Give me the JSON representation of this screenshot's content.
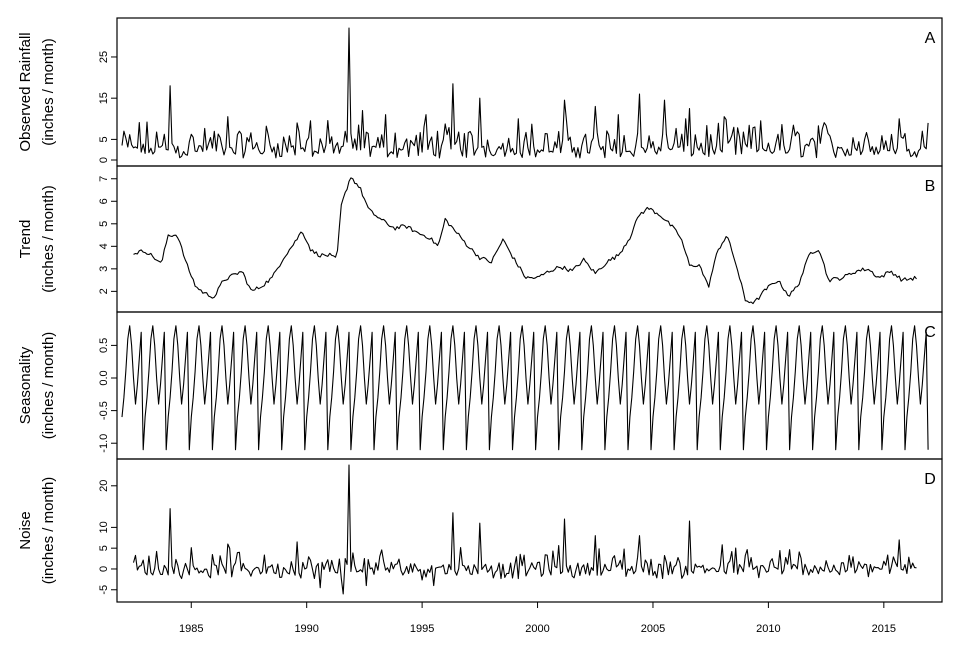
{
  "chart_data": {
    "type": "line",
    "layout": "stacked-panels",
    "xlabel": "",
    "x_ticks": [
      1985,
      1990,
      1995,
      2000,
      2005,
      2010,
      2015
    ],
    "x_range": [
      1982,
      2017
    ],
    "panels": [
      {
        "id": "A",
        "letter": "A",
        "ylabel": [
          "Observed Rainfall",
          "(inches / month)"
        ],
        "y_ticks": [
          0,
          5,
          15,
          25
        ],
        "ylim": [
          0,
          33
        ],
        "x_start": 1982.0,
        "x_end": 2016.92,
        "generator": "rainfall",
        "peaks": [
          {
            "x": 1984.1,
            "y": 18
          },
          {
            "x": 1986.6,
            "y": 10.5
          },
          {
            "x": 1989.6,
            "y": 9
          },
          {
            "x": 1990.2,
            "y": 9.5
          },
          {
            "x": 1991.8,
            "y": 32
          },
          {
            "x": 1992.4,
            "y": 12
          },
          {
            "x": 1993.4,
            "y": 11
          },
          {
            "x": 1995.2,
            "y": 11
          },
          {
            "x": 1996.3,
            "y": 18.5
          },
          {
            "x": 1997.5,
            "y": 15
          },
          {
            "x": 1999.2,
            "y": 10
          },
          {
            "x": 2001.2,
            "y": 14.5
          },
          {
            "x": 2002.5,
            "y": 13
          },
          {
            "x": 2003.5,
            "y": 11
          },
          {
            "x": 2004.4,
            "y": 16
          },
          {
            "x": 2005.5,
            "y": 14.5
          },
          {
            "x": 2006.6,
            "y": 12.5
          },
          {
            "x": 2008.1,
            "y": 10.5
          },
          {
            "x": 2009.4,
            "y": 8
          },
          {
            "x": 2012.3,
            "y": 7.5
          },
          {
            "x": 2015.7,
            "y": 10
          },
          {
            "x": 2016.9,
            "y": 9
          }
        ]
      },
      {
        "id": "B",
        "letter": "B",
        "ylabel": [
          "Trend",
          "(inches / month)"
        ],
        "y_ticks": [
          2,
          3,
          4,
          5,
          6,
          7
        ],
        "ylim": [
          1.35,
          7.3
        ],
        "x_start": 1982.5,
        "x_end": 2016.4,
        "generator": "trend",
        "knots": [
          [
            1982.5,
            3.7
          ],
          [
            1983.0,
            3.8
          ],
          [
            1983.4,
            3.5
          ],
          [
            1983.7,
            3.2
          ],
          [
            1984.0,
            4.5
          ],
          [
            1984.4,
            4.5
          ],
          [
            1984.8,
            3.2
          ],
          [
            1985.2,
            2.2
          ],
          [
            1985.6,
            1.9
          ],
          [
            1986.0,
            1.75
          ],
          [
            1986.4,
            2.5
          ],
          [
            1986.8,
            2.7
          ],
          [
            1987.2,
            2.9
          ],
          [
            1987.6,
            2.0
          ],
          [
            1988.0,
            2.2
          ],
          [
            1988.5,
            2.6
          ],
          [
            1989.0,
            3.5
          ],
          [
            1989.5,
            4.2
          ],
          [
            1989.8,
            4.7
          ],
          [
            1990.2,
            3.8
          ],
          [
            1990.6,
            3.6
          ],
          [
            1991.0,
            3.6
          ],
          [
            1991.3,
            3.4
          ],
          [
            1991.5,
            5.8
          ],
          [
            1991.9,
            7.1
          ],
          [
            1992.3,
            6.6
          ],
          [
            1992.7,
            5.6
          ],
          [
            1993.2,
            5.2
          ],
          [
            1993.8,
            4.8
          ],
          [
            1994.3,
            4.9
          ],
          [
            1994.8,
            4.6
          ],
          [
            1995.3,
            4.4
          ],
          [
            1995.7,
            4.0
          ],
          [
            1996.0,
            5.2
          ],
          [
            1996.5,
            4.6
          ],
          [
            1997.0,
            4.0
          ],
          [
            1997.5,
            3.5
          ],
          [
            1998.0,
            3.3
          ],
          [
            1998.5,
            4.3
          ],
          [
            1999.0,
            3.4
          ],
          [
            1999.5,
            2.6
          ],
          [
            2000.0,
            2.6
          ],
          [
            2000.5,
            2.9
          ],
          [
            2001.0,
            3.1
          ],
          [
            2001.5,
            2.9
          ],
          [
            2002.0,
            3.4
          ],
          [
            2002.5,
            2.8
          ],
          [
            2003.0,
            3.3
          ],
          [
            2003.5,
            3.6
          ],
          [
            2004.0,
            4.4
          ],
          [
            2004.4,
            5.4
          ],
          [
            2004.8,
            5.7
          ],
          [
            2005.3,
            5.4
          ],
          [
            2005.8,
            4.9
          ],
          [
            2006.2,
            4.4
          ],
          [
            2006.6,
            3.1
          ],
          [
            2007.0,
            3.2
          ],
          [
            2007.4,
            2.2
          ],
          [
            2007.8,
            3.8
          ],
          [
            2008.2,
            4.5
          ],
          [
            2008.6,
            3.2
          ],
          [
            2009.0,
            1.6
          ],
          [
            2009.4,
            1.5
          ],
          [
            2009.9,
            2.1
          ],
          [
            2010.4,
            2.5
          ],
          [
            2010.9,
            1.8
          ],
          [
            2011.3,
            2.3
          ],
          [
            2011.8,
            3.7
          ],
          [
            2012.2,
            3.9
          ],
          [
            2012.6,
            2.5
          ],
          [
            2013.2,
            2.6
          ],
          [
            2013.8,
            2.9
          ],
          [
            2014.3,
            3.0
          ],
          [
            2014.8,
            2.6
          ],
          [
            2015.3,
            2.9
          ],
          [
            2015.8,
            2.5
          ],
          [
            2016.4,
            2.6
          ]
        ]
      },
      {
        "id": "C",
        "letter": "C",
        "ylabel": [
          "Seasonality",
          "(inches / month)"
        ],
        "y_ticks": [
          -1.0,
          -0.5,
          0.0,
          0.5
        ],
        "ylim": [
          -1.15,
          0.92
        ],
        "x_start": 1982.0,
        "x_end": 2016.92,
        "generator": "seasonal",
        "monthly_pattern": [
          -0.6,
          -0.3,
          0.1,
          0.6,
          0.8,
          0.5,
          0.0,
          -0.4,
          -0.1,
          0.3,
          0.7,
          -1.1
        ]
      },
      {
        "id": "D",
        "letter": "D",
        "ylabel": [
          "Noise",
          "(inches / month)"
        ],
        "y_ticks": [
          -5,
          0,
          5,
          10,
          20
        ],
        "ylim": [
          -6.5,
          25
        ],
        "x_start": 1982.5,
        "x_end": 2016.4,
        "generator": "noise",
        "peaks": [
          {
            "x": 1984.1,
            "y": 14.5
          },
          {
            "x": 1991.8,
            "y": 25
          },
          {
            "x": 1996.3,
            "y": 13.5
          },
          {
            "x": 1997.5,
            "y": 11
          },
          {
            "x": 2001.2,
            "y": 12
          },
          {
            "x": 2006.6,
            "y": 11.5
          },
          {
            "x": 1989.6,
            "y": 6.5
          },
          {
            "x": 2004.4,
            "y": 8
          },
          {
            "x": 2015.7,
            "y": 7
          },
          {
            "x": 1986.6,
            "y": 6
          },
          {
            "x": 2002.5,
            "y": 8
          }
        ],
        "troughs": [
          {
            "x": 1991.6,
            "y": -6
          },
          {
            "x": 1990.6,
            "y": -4.5
          },
          {
            "x": 1992.6,
            "y": -4
          },
          {
            "x": 1995.5,
            "y": -4
          }
        ]
      }
    ]
  }
}
